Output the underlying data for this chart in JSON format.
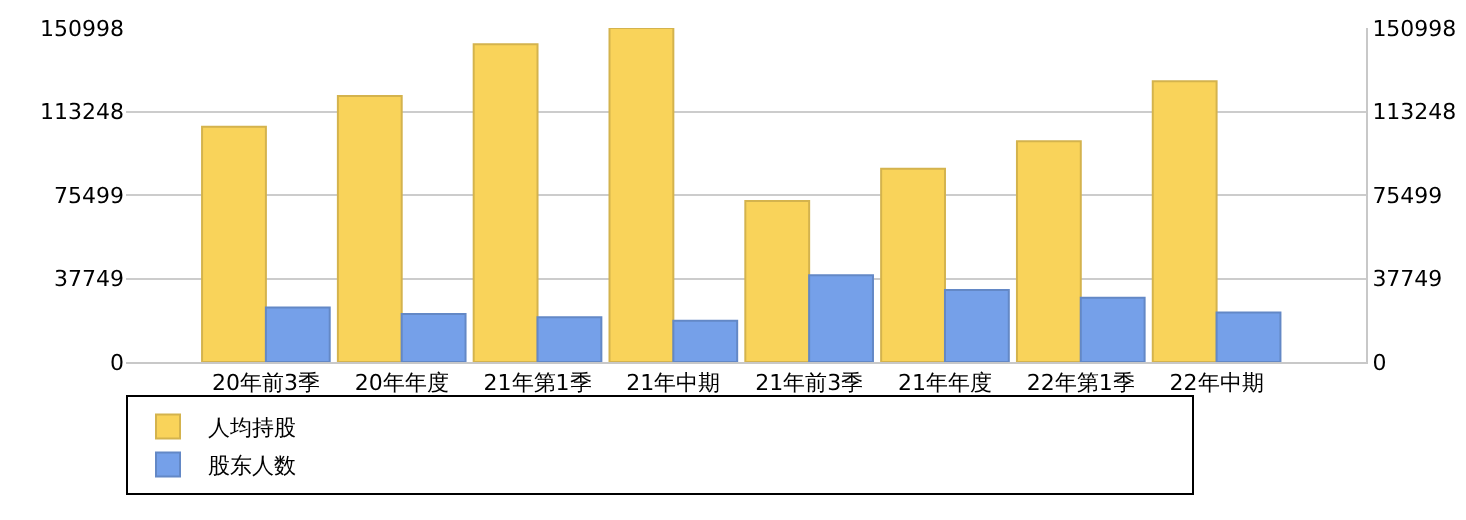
{
  "chart_data": {
    "type": "bar",
    "categories": [
      "20年前3季",
      "20年年度",
      "21年第1季",
      "21年中期",
      "21年前3季",
      "21年年度",
      "22年第1季",
      "22年中期"
    ],
    "series": [
      {
        "name": "人均持股",
        "color": "#f9d35a",
        "values": [
          106400,
          120300,
          143700,
          150998,
          72800,
          87400,
          99800,
          126900
        ]
      },
      {
        "name": "股东人数",
        "color": "#75a0e9",
        "values": [
          24600,
          21700,
          20200,
          18700,
          39200,
          32600,
          29000,
          22400
        ]
      }
    ],
    "ylim": [
      0,
      150998
    ],
    "yticks": [
      0,
      37749,
      75499,
      113248,
      150998
    ],
    "y2lim": [
      0,
      150998
    ],
    "y2ticks": [
      0,
      37749,
      75499,
      113248,
      150998
    ],
    "grid": "y",
    "legend": "bottom"
  }
}
